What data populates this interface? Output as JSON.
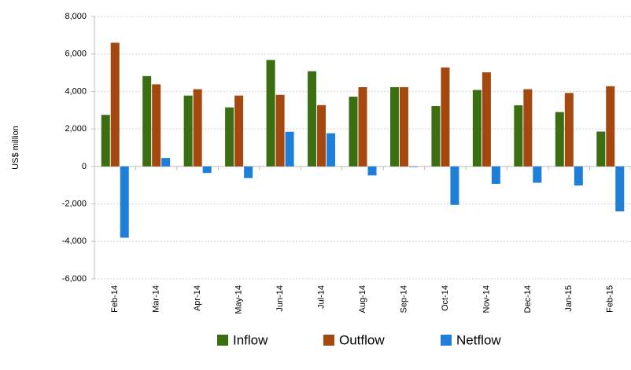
{
  "chart_data": {
    "type": "bar",
    "y_label": "US$ million",
    "categories": [
      "Feb-14",
      "Mar-14",
      "Apr-14",
      "May-14",
      "Jun-14",
      "Jul-14",
      "Aug-14",
      "Sep-14",
      "Oct-14",
      "Nov-14",
      "Dec-14",
      "Jan-15",
      "Feb-15"
    ],
    "series": [
      {
        "name": "Inflow",
        "color": "#3b6e11",
        "values": [
          2750,
          4820,
          3780,
          3150,
          5680,
          5080,
          3720,
          4230,
          3220,
          4080,
          3260,
          2900,
          1860
        ]
      },
      {
        "name": "Outflow",
        "color": "#a4480f",
        "values": [
          6600,
          4380,
          4120,
          3780,
          3820,
          3270,
          4230,
          4230,
          5280,
          5020,
          4120,
          3920,
          4280
        ]
      },
      {
        "name": "Netflow",
        "color": "#1f7fd8",
        "values": [
          -3800,
          450,
          -350,
          -620,
          1850,
          1770,
          -480,
          -30,
          -2050,
          -930,
          -870,
          -1020,
          -2400
        ]
      }
    ],
    "ylim": [
      -6000,
      8000
    ],
    "yticks": [
      {
        "value": -6000,
        "label": "-6,000"
      },
      {
        "value": -4000,
        "label": "-4,000"
      },
      {
        "value": -2000,
        "label": "-2,000"
      },
      0,
      {
        "value": 2000,
        "label": "2,000"
      },
      {
        "value": 4000,
        "label": "4,000"
      },
      {
        "value": 6000,
        "label": "6,000"
      },
      {
        "value": 8000,
        "label": "8,000"
      }
    ],
    "grid": true
  }
}
